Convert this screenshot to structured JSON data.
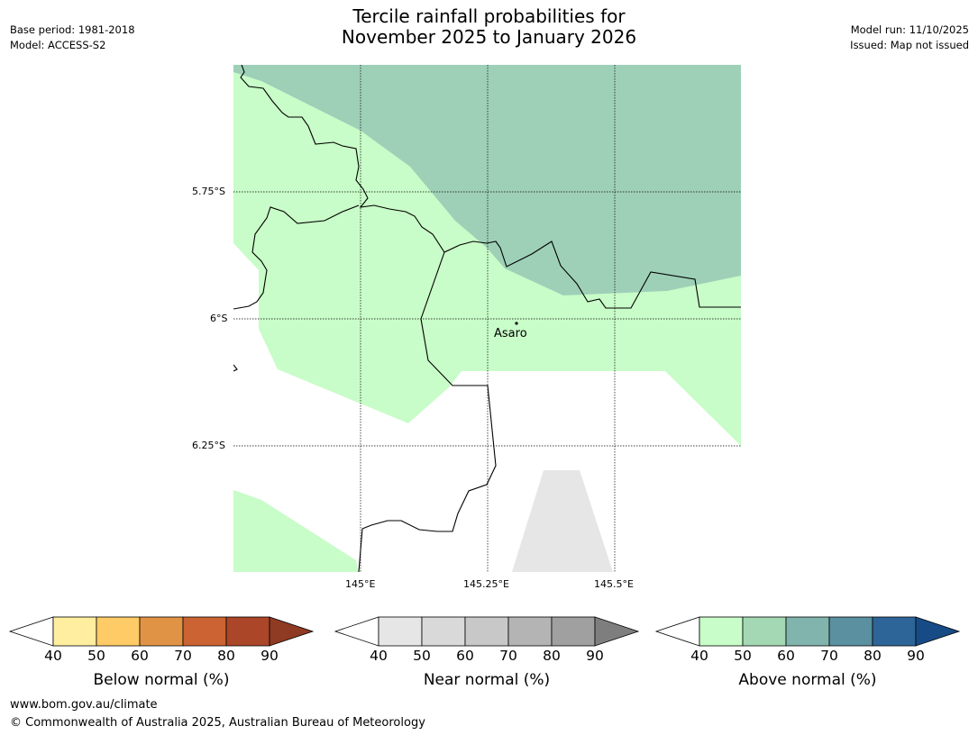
{
  "header": {
    "base_period": "Base period: 1981-2018",
    "model": "Model: ACCESS-S2",
    "title_line1": "Tercile rainfall probabilities for",
    "title_line2": "November 2025 to January 2026",
    "model_run": "Model run: 11/10/2025",
    "issued": "Issued: Map not issued"
  },
  "map": {
    "lat_labels": [
      "5.75°S",
      "6°S",
      "6.25°S"
    ],
    "lon_labels": [
      "145°E",
      "145.25°E",
      "145.5°E"
    ],
    "place": "Asaro",
    "colors": {
      "above_50": "#c8fcc8",
      "above_60": "#9ed0b8",
      "near_40": "#e6e6e6",
      "border": "#000000",
      "grid": "#000000"
    }
  },
  "colorbars": [
    {
      "label": "Below normal (%)",
      "ticks": [
        "40",
        "50",
        "60",
        "70",
        "80",
        "90"
      ],
      "colors": [
        "#ffeea0",
        "#fecb66",
        "#e19345",
        "#cb6333",
        "#ab4628",
        "#8f3a22"
      ]
    },
    {
      "label": "Near normal (%)",
      "ticks": [
        "40",
        "50",
        "60",
        "70",
        "80",
        "90"
      ],
      "colors": [
        "#e6e6e6",
        "#d9d9d9",
        "#c8c8c8",
        "#b4b4b4",
        "#a0a0a0",
        "#7e7e7e"
      ]
    },
    {
      "label": "Above normal (%)",
      "ticks": [
        "40",
        "50",
        "60",
        "70",
        "80",
        "90"
      ],
      "colors": [
        "#c8fcc8",
        "#a4d8b4",
        "#80b4ac",
        "#5a90a0",
        "#2e6598",
        "#174b86"
      ]
    }
  ],
  "footer": {
    "url": "www.bom.gov.au/climate",
    "copyright": "© Commonwealth of Australia 2025, Australian Bureau of Meteorology"
  }
}
